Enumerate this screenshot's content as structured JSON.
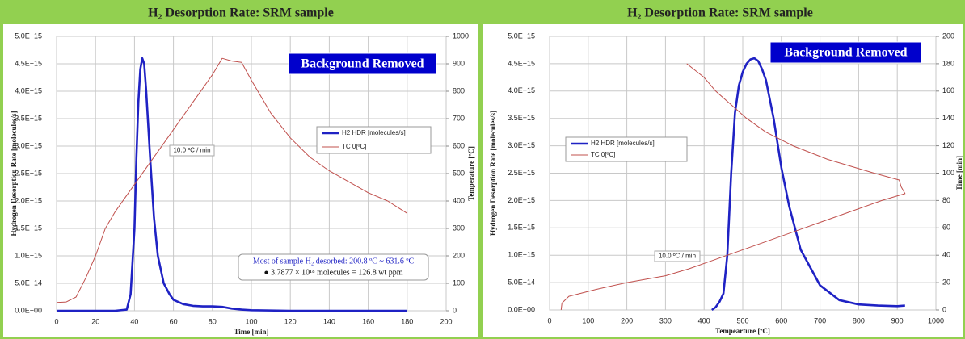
{
  "chart_data": [
    {
      "type": "line",
      "title": "H₂ Desorption Rate: SRM sample",
      "xlabel": "Time [min]",
      "ylabel": "Hydrogen Desorption Rate [molecules/s]",
      "y2label": "Temperature [ºC]",
      "xlim": [
        0,
        200
      ],
      "xticks": [
        0,
        20,
        40,
        60,
        80,
        100,
        120,
        140,
        160,
        180,
        200
      ],
      "ylim": [
        0,
        5000000000000000.0
      ],
      "yticks": [
        {
          "value": 0,
          "label": "0.0E+00"
        },
        {
          "value": 500000000000000.0,
          "label": "5.0E+14"
        },
        {
          "value": 1000000000000000.0,
          "label": "1.0E+15"
        },
        {
          "value": 1500000000000000.0,
          "label": "1.5E+15"
        },
        {
          "value": 2000000000000000.0,
          "label": "2.0E+15"
        },
        {
          "value": 2500000000000000.0,
          "label": "2.5E+15"
        },
        {
          "value": 3000000000000000.0,
          "label": "3.0E+15"
        },
        {
          "value": 3500000000000000.0,
          "label": "3.5E+15"
        },
        {
          "value": 4000000000000000.0,
          "label": "4.0E+15"
        },
        {
          "value": 4500000000000000.0,
          "label": "4.5E+15"
        },
        {
          "value": 5000000000000000.0,
          "label": "5.0E+15"
        }
      ],
      "y2lim": [
        0,
        1000
      ],
      "y2ticks": [
        0,
        100,
        200,
        300,
        400,
        500,
        600,
        700,
        800,
        900,
        1000
      ],
      "grid": true,
      "badge": "Background Removed",
      "rate_note": "10.0 ºC / min",
      "notes": [
        "Most of sample H₂ desorbed: 200.8 ºC ~ 631.6 ºC",
        "● 3.7877 × 10¹⁸ molecules = 126.8 wt ppm"
      ],
      "series": [
        {
          "name": "H2 HDR [molecules/s]",
          "color": "#1f22c4",
          "x": [
            0,
            30,
            36,
            38,
            40,
            41,
            42,
            43,
            44,
            45,
            46,
            48,
            50,
            52,
            55,
            58,
            60,
            65,
            70,
            75,
            80,
            85,
            90,
            95,
            100,
            120,
            140,
            160,
            180
          ],
          "values": [
            0,
            0,
            20000000000000.0,
            300000000000000.0,
            1500000000000000.0,
            2800000000000000.0,
            3800000000000000.0,
            4400000000000000.0,
            4600000000000000.0,
            4500000000000000.0,
            4000000000000000.0,
            2800000000000000.0,
            1700000000000000.0,
            1000000000000000.0,
            500000000000000.0,
            300000000000000.0,
            200000000000000.0,
            120000000000000.0,
            90000000000000.0,
            80000000000000.0,
            80000000000000.0,
            70000000000000.0,
            40000000000000.0,
            20000000000000.0,
            10000000000000.0,
            0,
            0,
            0,
            0
          ]
        },
        {
          "name": "TC 0[ºC]",
          "color": "#c0504d",
          "axis": "y2",
          "x": [
            0,
            5,
            10,
            15,
            20,
            25,
            30,
            35,
            40,
            45,
            50,
            55,
            60,
            65,
            70,
            75,
            80,
            85,
            90,
            95,
            100,
            110,
            120,
            130,
            140,
            150,
            160,
            170,
            180
          ],
          "values": [
            30,
            32,
            50,
            120,
            200,
            300,
            360,
            410,
            460,
            510,
            560,
            610,
            660,
            710,
            760,
            810,
            860,
            920,
            910,
            905,
            840,
            720,
            630,
            560,
            510,
            470,
            430,
            400,
            355
          ]
        }
      ]
    },
    {
      "type": "line",
      "title": "H₂ Desorption Rate: SRM sample",
      "xlabel": "Tempearture [ºC]",
      "ylabel": "Hydrogen Desorption Rate [molecules/s]",
      "y2label": "Time [min]",
      "xlim": [
        0,
        1000
      ],
      "xticks": [
        0,
        100,
        200,
        300,
        400,
        500,
        600,
        700,
        800,
        900,
        1000
      ],
      "ylim": [
        0,
        5000000000000000.0
      ],
      "yticks": [
        {
          "value": 0,
          "label": "0.0E+00"
        },
        {
          "value": 500000000000000.0,
          "label": "5.0E+14"
        },
        {
          "value": 1000000000000000.0,
          "label": "1.0E+15"
        },
        {
          "value": 1500000000000000.0,
          "label": "1.5E+15"
        },
        {
          "value": 2000000000000000.0,
          "label": "2.0E+15"
        },
        {
          "value": 2500000000000000.0,
          "label": "2.5E+15"
        },
        {
          "value": 3000000000000000.0,
          "label": "3.0E+15"
        },
        {
          "value": 3500000000000000.0,
          "label": "3.5E+15"
        },
        {
          "value": 4000000000000000.0,
          "label": "4.0E+15"
        },
        {
          "value": 4500000000000000.0,
          "label": "4.5E+15"
        },
        {
          "value": 5000000000000000.0,
          "label": "5.0E+15"
        }
      ],
      "y2lim": [
        0,
        200
      ],
      "y2ticks": [
        0,
        20,
        40,
        60,
        80,
        100,
        120,
        140,
        160,
        180,
        200
      ],
      "grid": true,
      "badge": "Background Removed",
      "rate_note": "10.0 ºC / min",
      "series": [
        {
          "name": "H2 HDR [molecules/s]",
          "color": "#1f22c4",
          "x": [
            420,
            430,
            440,
            450,
            460,
            470,
            480,
            490,
            500,
            510,
            520,
            530,
            540,
            550,
            560,
            580,
            600,
            620,
            650,
            700,
            750,
            800,
            850,
            900,
            920
          ],
          "values": [
            0,
            50000000000000.0,
            150000000000000.0,
            300000000000000.0,
            1000000000000000.0,
            2500000000000000.0,
            3600000000000000.0,
            4100000000000000.0,
            4350000000000000.0,
            4500000000000000.0,
            4580000000000000.0,
            4600000000000000.0,
            4550000000000000.0,
            4400000000000000.0,
            4200000000000000.0,
            3500000000000000.0,
            2600000000000000.0,
            1900000000000000.0,
            1100000000000000.0,
            450000000000000.0,
            180000000000000.0,
            100000000000000.0,
            80000000000000.0,
            70000000000000.0,
            80000000000000.0
          ]
        },
        {
          "name": "TC 0[ºC]",
          "color": "#c0504d",
          "axis": "y2",
          "x": [
            30,
            32,
            50,
            120,
            200,
            300,
            360,
            410,
            460,
            560,
            660,
            760,
            860,
            920,
            910,
            905,
            840,
            720,
            630,
            560,
            510,
            470,
            430,
            400,
            355
          ],
          "values": [
            0,
            5,
            10,
            15,
            20,
            25,
            30,
            35,
            40,
            50,
            60,
            70,
            80,
            85,
            90,
            95,
            100,
            110,
            120,
            130,
            140,
            150,
            160,
            170,
            180
          ]
        }
      ]
    }
  ]
}
